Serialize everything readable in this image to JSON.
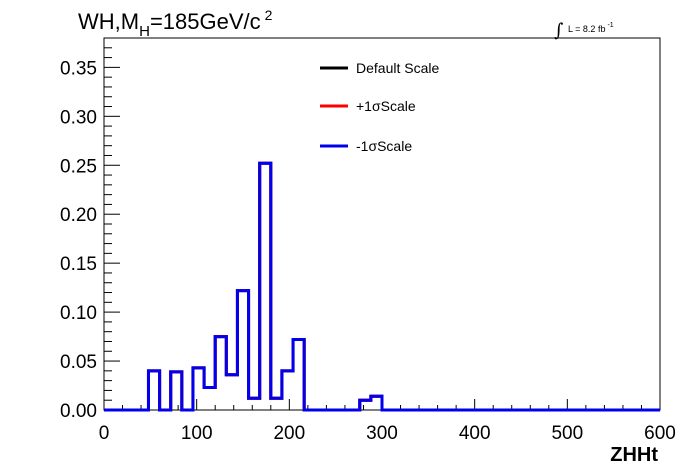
{
  "chart_data": {
    "type": "line",
    "title": {
      "main": "WH,M",
      "subscript": "H",
      "rest": "=185GeV/c",
      "superscript": "2"
    },
    "luminosity": {
      "integral_symbol": "∫",
      "text": "L = 8.2 fb",
      "superscript": "-1"
    },
    "xlabel": "ZHHt",
    "ylabel": "",
    "xlim": [
      0,
      600
    ],
    "ylim": [
      0,
      0.38
    ],
    "x_ticks": [
      0,
      100,
      200,
      300,
      400,
      500,
      600
    ],
    "x_tick_labels": [
      "0",
      "100",
      "200",
      "300",
      "400",
      "500",
      "600"
    ],
    "y_ticks": [
      0,
      0.05,
      0.1,
      0.15,
      0.2,
      0.25,
      0.3,
      0.35
    ],
    "y_tick_labels": [
      "0.00",
      "0.05",
      "0.10",
      "0.15",
      "0.20",
      "0.25",
      "0.30",
      "0.35"
    ],
    "grid": false,
    "legend_position": "top-center",
    "bin_edges": [
      0,
      12,
      24,
      36,
      48,
      60,
      72,
      84,
      96,
      108,
      120,
      132,
      144,
      156,
      168,
      180,
      192,
      204,
      216,
      228,
      240,
      252,
      264,
      276,
      288,
      300,
      312,
      324,
      336,
      348,
      360,
      372,
      384,
      396,
      408,
      420,
      432,
      444,
      456,
      468,
      480,
      492,
      504,
      516,
      528,
      540,
      552,
      564,
      576,
      588,
      600
    ],
    "series": [
      {
        "name": "Default Scale",
        "color": "#000000",
        "values": [
          0,
          0,
          0,
          0,
          0.04,
          0,
          0.039,
          0,
          0.043,
          0.023,
          0.075,
          0.036,
          0.122,
          0.012,
          0.252,
          0.012,
          0.04,
          0.072,
          0,
          0,
          0,
          0,
          0,
          0.01,
          0.014,
          0,
          0,
          0,
          0,
          0,
          0,
          0,
          0,
          0,
          0,
          0,
          0,
          0,
          0,
          0,
          0,
          0,
          0,
          0,
          0,
          0,
          0,
          0,
          0,
          0
        ]
      },
      {
        "name": "+1σScale",
        "color": "#ff0000",
        "values": [
          0,
          0,
          0,
          0,
          0.04,
          0,
          0.039,
          0,
          0.043,
          0.023,
          0.075,
          0.036,
          0.122,
          0.012,
          0.252,
          0.012,
          0.04,
          0.072,
          0,
          0,
          0,
          0,
          0,
          0.01,
          0.014,
          0,
          0,
          0,
          0,
          0,
          0,
          0,
          0,
          0,
          0,
          0,
          0,
          0,
          0,
          0,
          0,
          0,
          0,
          0,
          0,
          0,
          0,
          0,
          0,
          0
        ]
      },
      {
        "name": "-1σScale",
        "color": "#0000ee",
        "values": [
          0,
          0,
          0,
          0,
          0.04,
          0,
          0.039,
          0,
          0.043,
          0.023,
          0.075,
          0.036,
          0.122,
          0.012,
          0.252,
          0.012,
          0.04,
          0.072,
          0,
          0,
          0,
          0,
          0,
          0.01,
          0.014,
          0,
          0,
          0,
          0,
          0,
          0,
          0,
          0,
          0,
          0,
          0,
          0,
          0,
          0,
          0,
          0,
          0,
          0,
          0,
          0,
          0,
          0,
          0,
          0,
          0
        ]
      }
    ]
  }
}
